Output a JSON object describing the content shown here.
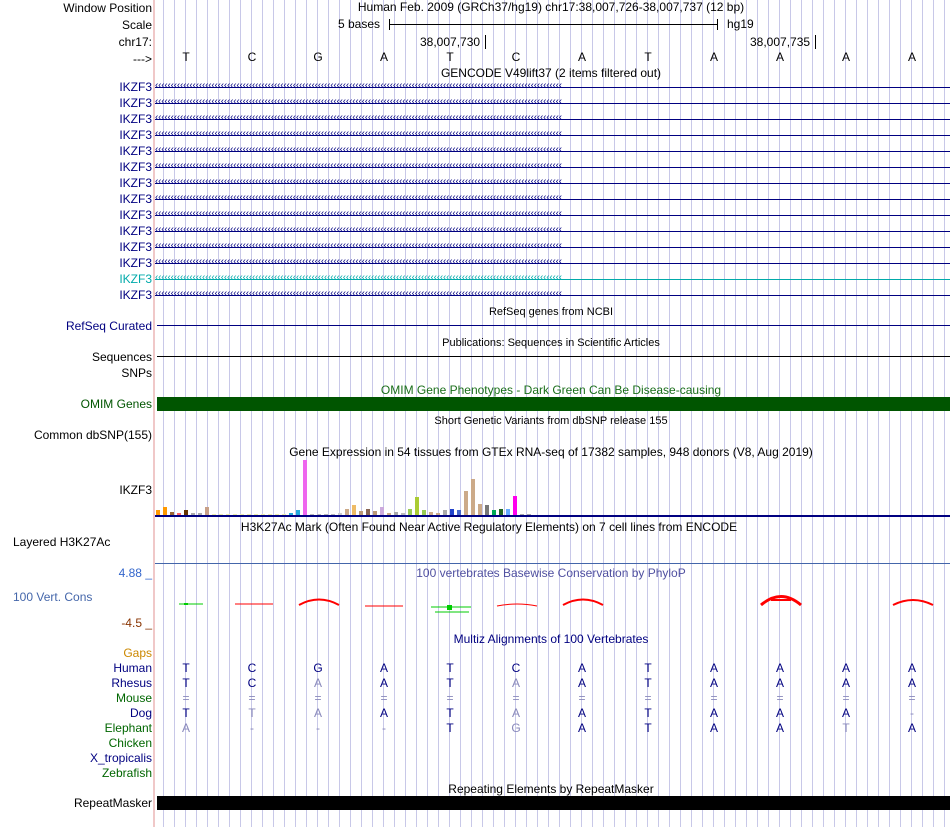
{
  "labels": {
    "window_position": "Window Position",
    "scale": "Scale",
    "chrom": "chr17:",
    "strand": "--->",
    "refseq": "RefSeq Curated",
    "sequences": "Sequences",
    "snps": "SNPs",
    "omim": "OMIM Genes",
    "dbsnp": "Common dbSNP(155)",
    "gtex_gene": "IKZF3",
    "h3k27ac": "Layered H3K27Ac",
    "cons": "100 Vert. Cons",
    "cons_max": "4.88 _",
    "cons_min": "-4.5 _",
    "gaps": "Gaps",
    "repeatmasker": "RepeatMasker"
  },
  "gencode_items": [
    "IKZF3",
    "IKZF3",
    "IKZF3",
    "IKZF3",
    "IKZF3",
    "IKZF3",
    "IKZF3",
    "IKZF3",
    "IKZF3",
    "IKZF3",
    "IKZF3",
    "IKZF3",
    "IKZF3",
    "IKZF3"
  ],
  "header": {
    "position_text": "Human Feb. 2009 (GRCh37/hg19)   chr17:38,007,726-38,007,737 (12 bp)",
    "scale_text": "5 bases",
    "assembly": "hg19",
    "coord1": "38,007,730",
    "coord2": "38,007,735"
  },
  "bases": [
    "T",
    "C",
    "G",
    "A",
    "T",
    "C",
    "A",
    "T",
    "A",
    "A",
    "A",
    "A"
  ],
  "track_titles": {
    "gencode": "GENCODE V49lift37 (2 items filtered out)",
    "refseq": "RefSeq genes from NCBI",
    "publications": "Publications: Sequences in Scientific Articles",
    "omim": "OMIM Gene Phenotypes - Dark Green Can Be Disease-causing",
    "dbsnp": "Short Genetic Variants from dbSNP release 155",
    "gtex": "Gene Expression in 54 tissues from GTEx RNA-seq of 17382 samples, 948 donors (V8, Aug 2019)",
    "h3k27ac": "H3K27Ac Mark (Often Found Near Active Regulatory Elements) on 7 cell lines from ENCODE",
    "phylop": "100 vertebrates Basewise Conservation by PhyloP",
    "multiz": "Multiz Alignments of 100 Vertebrates",
    "rmsk": "Repeating Elements by RepeatMasker"
  },
  "species": [
    {
      "name": "Human",
      "seq": [
        "T",
        "C",
        "G",
        "A",
        "T",
        "C",
        "A",
        "T",
        "A",
        "A",
        "A",
        "A"
      ],
      "faded": [
        false,
        false,
        false,
        false,
        false,
        false,
        false,
        false,
        false,
        false,
        false,
        false
      ]
    },
    {
      "name": "Rhesus",
      "seq": [
        "T",
        "C",
        "A",
        "A",
        "T",
        "A",
        "A",
        "T",
        "A",
        "A",
        "A",
        "A"
      ],
      "faded": [
        false,
        false,
        true,
        false,
        false,
        true,
        false,
        false,
        false,
        false,
        false,
        false
      ]
    },
    {
      "name": "Mouse",
      "seq": [
        "=",
        "=",
        "=",
        "=",
        "=",
        "=",
        "=",
        "=",
        "=",
        "=",
        "=",
        "="
      ],
      "faded": [
        true,
        true,
        true,
        true,
        true,
        true,
        true,
        true,
        true,
        true,
        true,
        true
      ]
    },
    {
      "name": "Dog",
      "seq": [
        "T",
        "T",
        "A",
        "A",
        "T",
        "A",
        "A",
        "T",
        "A",
        "A",
        "A",
        "-"
      ],
      "faded": [
        false,
        true,
        true,
        false,
        false,
        true,
        false,
        false,
        false,
        false,
        false,
        true
      ]
    },
    {
      "name": "Elephant",
      "seq": [
        "A",
        "-",
        "-",
        "-",
        "T",
        "G",
        "A",
        "T",
        "A",
        "A",
        "T",
        "A"
      ],
      "faded": [
        true,
        true,
        true,
        true,
        false,
        true,
        false,
        false,
        false,
        false,
        true,
        false
      ]
    },
    {
      "name": "Chicken",
      "seq": [],
      "faded": []
    },
    {
      "name": "X_tropicalis",
      "seq": [],
      "faded": []
    },
    {
      "name": "Zebrafish",
      "seq": [],
      "faded": []
    }
  ],
  "gtex_bars": [
    {
      "v": 6,
      "c": "#ff9900"
    },
    {
      "v": 10,
      "c": "#ff9900"
    },
    {
      "v": 4,
      "c": "#996633"
    },
    {
      "v": 2,
      "c": "#ff6666"
    },
    {
      "v": 6,
      "c": "#663300"
    },
    {
      "v": 3,
      "c": "#aaaaaa"
    },
    {
      "v": 2,
      "c": "#aaaaaa"
    },
    {
      "v": 10,
      "c": "#c8a088"
    },
    {
      "v": 1,
      "c": "#eeeeaa"
    },
    {
      "v": 1,
      "c": "#eeeeaa"
    },
    {
      "v": 1,
      "c": "#eeeeaa"
    },
    {
      "v": 1,
      "c": "#eeeeaa"
    },
    {
      "v": 1,
      "c": "#eeeeaa"
    },
    {
      "v": 1,
      "c": "#eeeeaa"
    },
    {
      "v": 1,
      "c": "#eeeeaa"
    },
    {
      "v": 1,
      "c": "#eeeeaa"
    },
    {
      "v": 1,
      "c": "#eeeeaa"
    },
    {
      "v": 1,
      "c": "#eeeeaa"
    },
    {
      "v": 1,
      "c": "#eeeeaa"
    },
    {
      "v": 3,
      "c": "#22aadd"
    },
    {
      "v": 6,
      "c": "#22aadd"
    },
    {
      "v": 68,
      "c": "#ee66ee"
    },
    {
      "v": 1,
      "c": "#bbbbbb"
    },
    {
      "v": 1,
      "c": "#bbbbbb"
    },
    {
      "v": 1,
      "c": "#bbbbbb"
    },
    {
      "v": 1,
      "c": "#bbbbbb"
    },
    {
      "v": 2,
      "c": "#cccccc"
    },
    {
      "v": 8,
      "c": "#ccaa88"
    },
    {
      "v": 12,
      "c": "#eebb66"
    },
    {
      "v": 5,
      "c": "#bb9977"
    },
    {
      "v": 8,
      "c": "#886655"
    },
    {
      "v": 5,
      "c": "#bb9977"
    },
    {
      "v": 10,
      "c": "#ccaadd"
    },
    {
      "v": 3,
      "c": "#ccaa88"
    },
    {
      "v": 4,
      "c": "#aaaaaa"
    },
    {
      "v": 3,
      "c": "#bbbbbb"
    },
    {
      "v": 8,
      "c": "#99cc55"
    },
    {
      "v": 22,
      "c": "#aacc33"
    },
    {
      "v": 6,
      "c": "#99cc55"
    },
    {
      "v": 4,
      "c": "#ccaa88"
    },
    {
      "v": 3,
      "c": "#ccaa88"
    },
    {
      "v": 6,
      "c": "#aaaaaa"
    },
    {
      "v": 8,
      "c": "#2244cc"
    },
    {
      "v": 6,
      "c": "#4466cc"
    },
    {
      "v": 30,
      "c": "#ccaa88"
    },
    {
      "v": 45,
      "c": "#ccaa88"
    },
    {
      "v": 14,
      "c": "#ccaa88"
    },
    {
      "v": 12,
      "c": "#777777"
    },
    {
      "v": 6,
      "c": "#00aa55"
    },
    {
      "v": 8,
      "c": "#226622"
    },
    {
      "v": 8,
      "c": "#66aaff"
    },
    {
      "v": 24,
      "c": "#ff00ee"
    },
    {
      "v": 1,
      "c": "#aaaaaa"
    },
    {
      "v": 1,
      "c": "#aaaaaa"
    }
  ],
  "colors": {
    "navy": "#000080",
    "omim_green": "#005500",
    "omim_title": "#1a6e1a",
    "phylop_blue": "#5050a0",
    "cons_red": "#ff0000",
    "cons_green": "#00cc00",
    "gaps_orange": "#cc8800",
    "species_green": "#006600",
    "h3k27ac_blue": "#4466aa",
    "cons_max_blue": "#3366cc",
    "cons_min_brown": "#883300",
    "highlight_teal": "#00aaaa",
    "faded_base": "#8888bb",
    "gridline": "#c8c8e8",
    "divider": "#f0c8c8"
  }
}
